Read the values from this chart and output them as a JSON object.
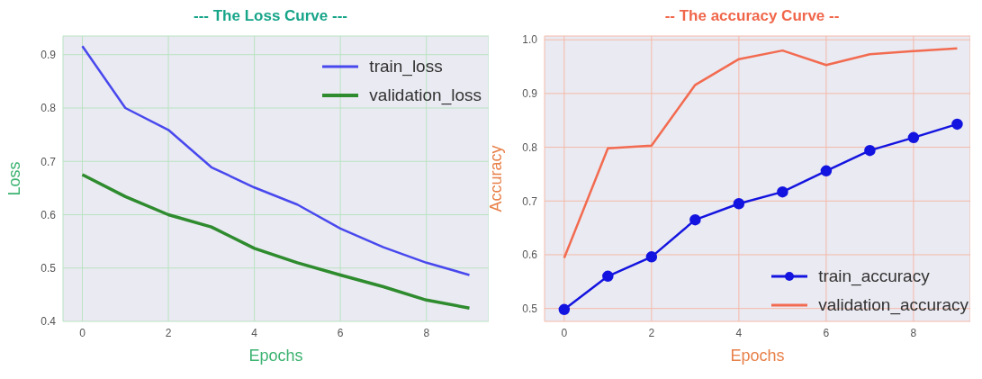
{
  "chart_data": [
    {
      "type": "line",
      "title": "--- The Loss Curve ---",
      "xlabel": "Epochs",
      "ylabel": "Loss",
      "x": [
        0,
        1,
        2,
        3,
        4,
        5,
        6,
        7,
        8,
        9
      ],
      "series": [
        {
          "name": "train_loss",
          "color": "#4848ee",
          "values": [
            0.916,
            0.8,
            0.759,
            0.689,
            0.651,
            0.619,
            0.574,
            0.539,
            0.51,
            0.487
          ]
        },
        {
          "name": "validation_loss",
          "color": "#2e8b2e",
          "values": [
            0.675,
            0.634,
            0.6,
            0.577,
            0.537,
            0.51,
            0.487,
            0.465,
            0.44,
            0.425
          ]
        }
      ],
      "xlim": [
        -0.45,
        9.45
      ],
      "xticks": [
        0,
        2,
        4,
        6,
        8
      ],
      "ylim": [
        0.4,
        0.935
      ],
      "yticks": [
        0.4,
        0.5,
        0.6,
        0.7,
        0.8,
        0.9
      ],
      "grid": true,
      "legend": "top right",
      "marker": "none",
      "line_style": "solid"
    },
    {
      "type": "line",
      "title": "-- The accuracy Curve --",
      "xlabel": "Epochs",
      "ylabel": "Accuracy",
      "x": [
        0,
        1,
        2,
        3,
        4,
        5,
        6,
        7,
        8,
        9
      ],
      "series": [
        {
          "name": "train_accuracy",
          "color": "#1414e0",
          "values": [
            0.498,
            0.56,
            0.596,
            0.665,
            0.695,
            0.717,
            0.756,
            0.794,
            0.818,
            0.843
          ],
          "marker": "circle"
        },
        {
          "name": "validation_accuracy",
          "color": "#f26b50",
          "values": [
            0.594,
            0.798,
            0.803,
            0.916,
            0.964,
            0.98,
            0.953,
            0.973,
            0.979,
            0.984
          ],
          "marker": "none"
        }
      ],
      "xlim": [
        -0.45,
        9.3
      ],
      "xticks": [
        0,
        2,
        4,
        6,
        8
      ],
      "ylim": [
        0.476,
        1.007
      ],
      "yticks": [
        0.5,
        0.6,
        0.7,
        0.8,
        0.9,
        {
          "value": 1,
          "label": "1.0"
        }
      ],
      "grid": true,
      "legend": "bottom right",
      "line_style": "solid"
    }
  ]
}
